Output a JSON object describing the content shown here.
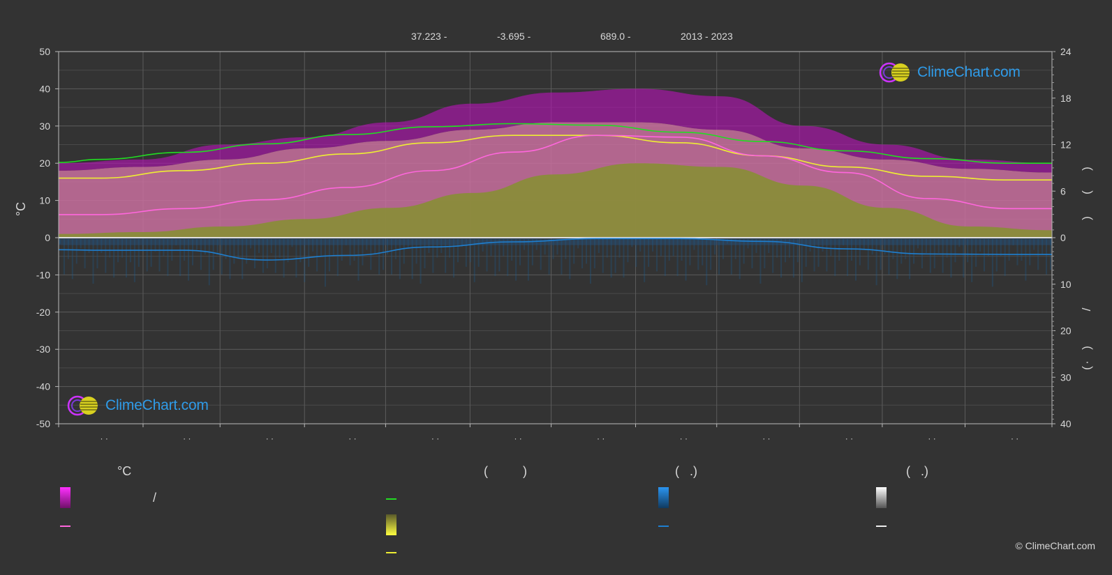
{
  "header": {
    "lat": "37.223 -",
    "lon": "-3.695 -",
    "elevation": "689.0 -",
    "years": "2013 - 2023"
  },
  "logo_text": "ClimeChart.com",
  "copyright": "© ClimeChart.com",
  "legend": {
    "col1_title": "°C",
    "col1_range_sep": "/",
    "col2_title": "(          )",
    "col3_title": "(   .)",
    "col4_title": "(   .)"
  },
  "icons": {
    "logo": "climechart-logo-icon"
  },
  "colors": {
    "temp_range": "#d60bd6",
    "daily_max_band": "#ee82cc",
    "mean_temp": "#ff66dd",
    "daylight": "#22dd22",
    "sunshine": "#e0e030",
    "sunshine_mean": "#eeee33",
    "precip": "#1e7fd0",
    "snow": "#dddddd"
  },
  "chart_data": {
    "type": "line",
    "ylabel_left": "°C",
    "ylim_left": [
      -50,
      50
    ],
    "yticks_left": [
      "50",
      "40",
      "30",
      "20",
      "10",
      "0",
      "-10",
      "-20",
      "-30",
      "-40",
      "-50"
    ],
    "right_axis_top": {
      "ylim": [
        0,
        24
      ],
      "ticks": [
        "24",
        "18",
        "12",
        "6",
        "0"
      ],
      "label_glyphs": [
        ")",
        "(",
        ")"
      ]
    },
    "right_axis_bottom": {
      "ylim": [
        0,
        40
      ],
      "ticks": [
        "0",
        "10",
        "20",
        "30",
        "40"
      ],
      "label_glyphs": [
        "/",
        ")",
        "·",
        "("
      ]
    },
    "xticks": [
      "· ·",
      "· ·",
      "· ·",
      "· ·",
      "· ·",
      "· ·",
      "· ·",
      "· ·",
      "· ·",
      "· ·",
      "· ·",
      "· ·"
    ],
    "grid": true,
    "x_months": 12,
    "series": [
      {
        "name": "",
        "color": "#22dd22",
        "axis": "right_top",
        "x": [
          0,
          0.5,
          1.5,
          2.5,
          3.5,
          4.5,
          5.5,
          6.5,
          7.5,
          8.5,
          9.5,
          10.5,
          11.5,
          12
        ],
        "values": [
          9.7,
          10.1,
          11.0,
          12.1,
          13.3,
          14.3,
          14.7,
          14.5,
          13.6,
          12.4,
          11.2,
          10.2,
          9.6,
          9.6
        ]
      },
      {
        "name": "",
        "color": "#eeee33",
        "axis": "left",
        "x": [
          0,
          0.5,
          1.5,
          2.5,
          3.5,
          4.5,
          5.5,
          6.5,
          7.5,
          8.5,
          9.5,
          10.5,
          11.5,
          12
        ],
        "values": [
          16,
          16,
          18,
          20,
          22.5,
          25.5,
          27.5,
          27.5,
          25.5,
          22,
          19,
          16.5,
          15.5,
          15.5
        ]
      },
      {
        "name": "",
        "color": "#ff66dd",
        "axis": "left",
        "x": [
          0,
          0.5,
          1.5,
          2.5,
          3.5,
          4.5,
          5.5,
          6.5,
          7.5,
          8.5,
          9.5,
          10.5,
          11.5,
          12
        ],
        "values": [
          6.2,
          6.2,
          7.8,
          10.2,
          13.5,
          18,
          23,
          27.5,
          27,
          22,
          17.5,
          10.5,
          7.8,
          7.8
        ]
      },
      {
        "name": "",
        "color": "#1e7fd0",
        "axis": "right_bottom",
        "x": [
          0,
          0.5,
          1.5,
          2.5,
          3.5,
          4.5,
          5.5,
          6.5,
          7.5,
          8.5,
          9.5,
          10.5,
          11.5,
          12
        ],
        "values": [
          2.6,
          2.7,
          2.7,
          4.8,
          3.8,
          2.0,
          0.9,
          0.2,
          0.2,
          0.8,
          2.4,
          3.5,
          3.6,
          3.6
        ]
      }
    ],
    "bands": {
      "daily_max_top": [
        18,
        19,
        21,
        24,
        26,
        29,
        31,
        31,
        29,
        24,
        21,
        18.5,
        17.5
      ],
      "daily_max_peak": [
        20,
        21,
        25,
        27,
        31,
        36,
        39,
        40,
        38,
        30,
        25,
        21,
        20
      ],
      "daily_max_low": [
        1,
        1.5,
        3,
        5,
        8,
        12,
        17,
        20,
        19,
        14,
        8,
        3,
        2
      ],
      "sunshine_top": [
        17,
        18,
        20,
        22,
        25,
        27,
        28,
        28,
        26,
        22,
        19,
        17,
        16
      ]
    }
  }
}
